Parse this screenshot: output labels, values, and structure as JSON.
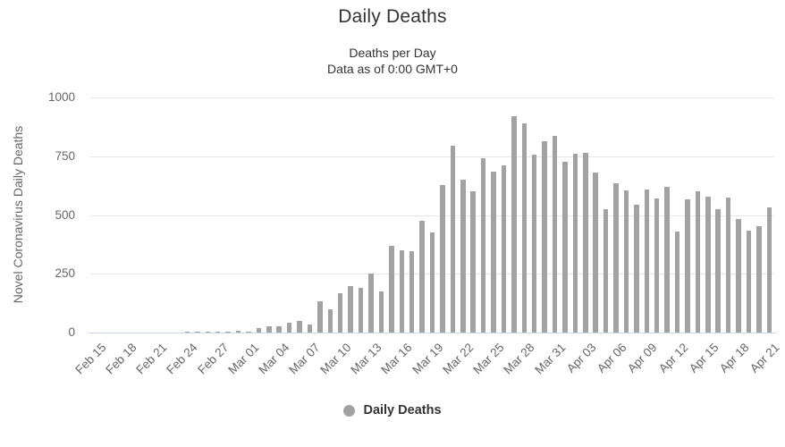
{
  "header": {
    "title": "Daily Deaths",
    "subtitle_line1": "Deaths per Day",
    "subtitle_line2": "Data as of 0:00 GMT+0"
  },
  "legend": {
    "label": "Daily Deaths"
  },
  "colors": {
    "bar": "#a2a2a2",
    "grid": "#e6e6e6",
    "axis_line": "#ccd6eb",
    "axis_label": "#666666",
    "title_text": "#333333"
  },
  "chart_data": {
    "type": "bar",
    "title": "Daily Deaths",
    "subtitle": [
      "Deaths per Day",
      "Data as of 0:00 GMT+0"
    ],
    "xlabel": "",
    "ylabel": "Novel Coronavirus Daily Deaths",
    "ylim": [
      0,
      1000
    ],
    "yticks": [
      0,
      250,
      500,
      750,
      1000
    ],
    "x_tick_every": 3,
    "grid": true,
    "legend_position": "bottom",
    "legend_entries": [
      "Daily Deaths"
    ],
    "categories": [
      "Feb 15",
      "Feb 16",
      "Feb 17",
      "Feb 18",
      "Feb 19",
      "Feb 20",
      "Feb 21",
      "Feb 22",
      "Feb 23",
      "Feb 24",
      "Feb 25",
      "Feb 26",
      "Feb 27",
      "Feb 28",
      "Feb 29",
      "Mar 01",
      "Mar 02",
      "Mar 03",
      "Mar 04",
      "Mar 05",
      "Mar 06",
      "Mar 07",
      "Mar 08",
      "Mar 09",
      "Mar 10",
      "Mar 11",
      "Mar 12",
      "Mar 13",
      "Mar 14",
      "Mar 15",
      "Mar 16",
      "Mar 17",
      "Mar 18",
      "Mar 19",
      "Mar 20",
      "Mar 21",
      "Mar 22",
      "Mar 23",
      "Mar 24",
      "Mar 25",
      "Mar 26",
      "Mar 27",
      "Mar 28",
      "Mar 29",
      "Mar 30",
      "Mar 31",
      "Apr 01",
      "Apr 02",
      "Apr 03",
      "Apr 04",
      "Apr 05",
      "Apr 06",
      "Apr 07",
      "Apr 08",
      "Apr 09",
      "Apr 10",
      "Apr 11",
      "Apr 12",
      "Apr 13",
      "Apr 14",
      "Apr 15",
      "Apr 16",
      "Apr 17",
      "Apr 18",
      "Apr 19",
      "Apr 20",
      "Apr 21"
    ],
    "values": [
      0,
      0,
      0,
      0,
      0,
      0,
      1,
      1,
      1,
      4,
      3,
      2,
      5,
      4,
      8,
      5,
      18,
      27,
      28,
      41,
      49,
      36,
      133,
      97,
      168,
      196,
      189,
      250,
      175,
      368,
      349,
      345,
      475,
      427,
      627,
      793,
      651,
      601,
      743,
      683,
      712,
      919,
      889,
      756,
      812,
      837,
      727,
      760,
      766,
      681,
      525,
      636,
      604,
      542,
      610,
      570,
      619,
      431,
      566,
      602,
      578,
      525,
      575,
      482,
      433,
      454,
      534
    ]
  }
}
